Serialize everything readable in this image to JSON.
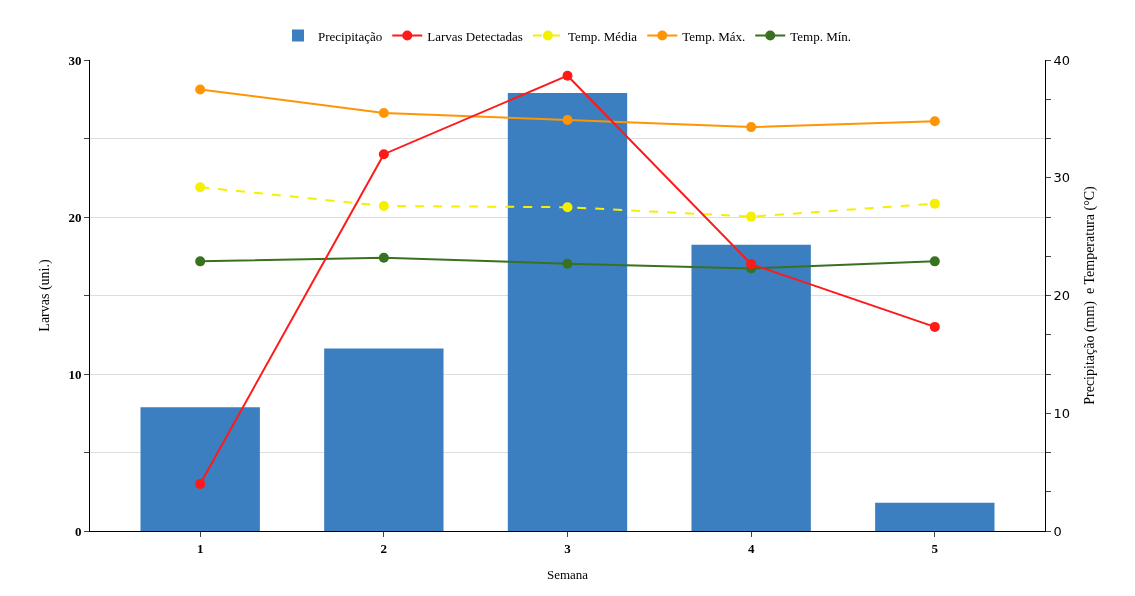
{
  "chart_data": {
    "type": "bar",
    "xlabel": "Semana",
    "ylabel": "Larvas (uni.)",
    "y2label": "Precipitação (mm)  e Temperatura (°C)",
    "categories": [
      "1",
      "2",
      "3",
      "4",
      "5"
    ],
    "series": [
      {
        "name": "Precipitação",
        "axis": "y2",
        "color": "#3b7fc0",
        "values": [
          10.5,
          15.5,
          37.2,
          24.3,
          2.4
        ]
      },
      {
        "name": "Larvas Detectadas",
        "type": "line",
        "axis": "y",
        "color": "#ff1a1a",
        "marker": "circle",
        "line_style": "solid",
        "values": [
          3,
          24,
          29,
          17,
          13
        ]
      },
      {
        "name": "Temp. Média",
        "type": "line",
        "axis": "y2",
        "color": "#f5f000",
        "marker": "circle",
        "line_style": "dashed",
        "values": [
          29.2,
          27.6,
          27.5,
          26.7,
          27.8
        ]
      },
      {
        "name": "Temp. Máx.",
        "type": "line",
        "axis": "y2",
        "color": "#ff9405",
        "marker": "circle",
        "line_style": "solid",
        "values": [
          37.5,
          35.5,
          34.9,
          34.3,
          34.8
        ]
      },
      {
        "name": "Temp. Mín.",
        "type": "line",
        "axis": "y2",
        "color": "#387220",
        "marker": "circle",
        "line_style": "solid",
        "values": [
          22.9,
          23.2,
          22.7,
          22.3,
          22.9
        ]
      }
    ],
    "ylim": [
      0,
      30
    ],
    "yticks": [
      0,
      {
        "value": 5,
        "label": null
      },
      10,
      {
        "value": 15,
        "label": null
      },
      20,
      {
        "value": 25,
        "label": null
      },
      30
    ],
    "y2lim": [
      0,
      40
    ],
    "y2ticks": [
      0,
      {
        "value": 3.333,
        "label": null
      },
      {
        "value": 6.667,
        "label": null
      },
      10,
      {
        "value": 13.333,
        "label": null
      },
      {
        "value": 16.667,
        "label": null
      },
      20,
      {
        "value": 23.333,
        "label": null
      },
      {
        "value": 26.667,
        "label": null
      },
      30,
      {
        "value": 33.333,
        "label": null
      },
      {
        "value": 36.667,
        "label": null
      },
      40
    ],
    "grid": "y",
    "legend": "top"
  }
}
